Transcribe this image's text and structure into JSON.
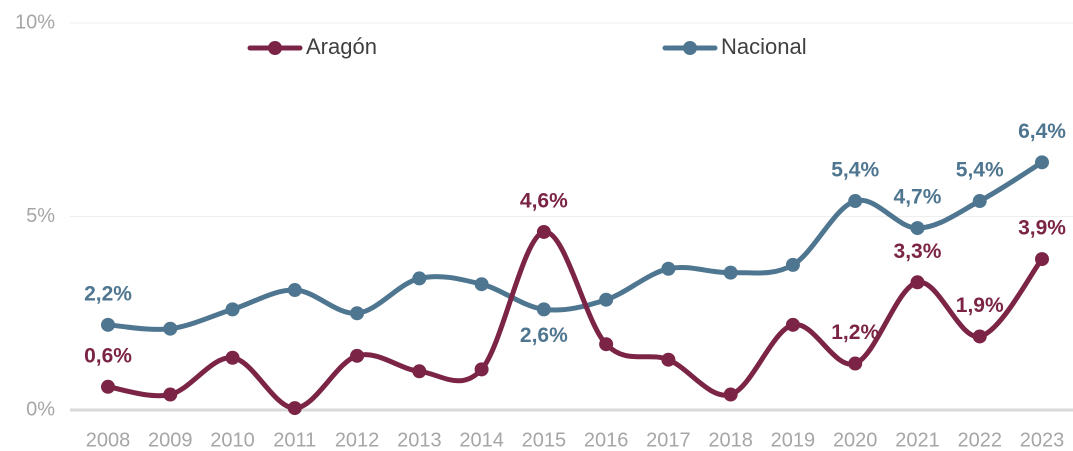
{
  "chart_data": {
    "type": "line",
    "categories": [
      "2008",
      "2009",
      "2010",
      "2011",
      "2012",
      "2013",
      "2014",
      "2015",
      "2016",
      "2017",
      "2018",
      "2019",
      "2020",
      "2021",
      "2022",
      "2023"
    ],
    "series": [
      {
        "name": "Aragón",
        "color": "#7b2445",
        "values": [
          0.6,
          0.4,
          1.35,
          0.05,
          1.4,
          1.0,
          1.05,
          4.6,
          1.7,
          1.3,
          0.4,
          2.2,
          1.2,
          3.3,
          1.9,
          3.9
        ],
        "value_labels": [
          "0,6%",
          null,
          null,
          null,
          null,
          null,
          null,
          "4,6%",
          null,
          null,
          null,
          null,
          "1,2%",
          "3,3%",
          "1,9%",
          "3,9%"
        ]
      },
      {
        "name": "Nacional",
        "color": "#4f7690",
        "values": [
          2.2,
          2.1,
          2.6,
          3.1,
          2.5,
          3.4,
          3.25,
          2.6,
          2.85,
          3.65,
          3.55,
          3.75,
          5.4,
          4.7,
          5.4,
          6.4
        ],
        "value_labels": [
          "2,2%",
          null,
          null,
          null,
          null,
          null,
          null,
          "2,6%",
          null,
          null,
          null,
          null,
          "5,4%",
          "4,7%",
          "5,4%",
          "6,4%"
        ]
      }
    ],
    "ylim": [
      0,
      10
    ],
    "yticks": [
      {
        "value": 0,
        "label": "0%"
      },
      {
        "value": 5,
        "label": "5%"
      },
      {
        "value": 10,
        "label": "10%"
      }
    ],
    "grid": true,
    "legend": "top"
  }
}
